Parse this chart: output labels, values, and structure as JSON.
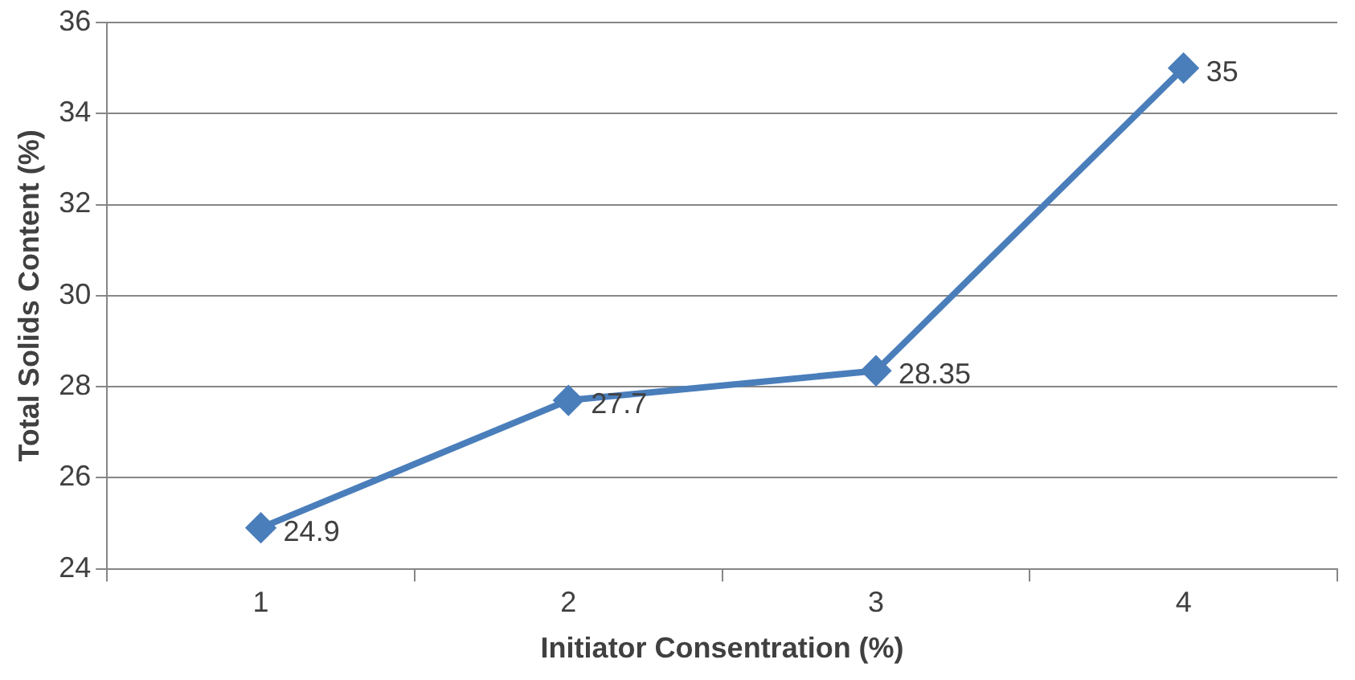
{
  "chart_data": {
    "type": "line",
    "xlabel": "Initiator Consentration (%)",
    "ylabel": "Total Solids Content (%)",
    "categories": [
      "1",
      "2",
      "3",
      "4"
    ],
    "series": [
      {
        "color": "#4a7ebb",
        "values": [
          24.9,
          27.7,
          28.35,
          35
        ]
      }
    ],
    "ylim": [
      24,
      36
    ],
    "yticks": [
      24,
      26,
      28,
      30,
      32,
      34,
      36
    ],
    "grid": "y",
    "legend": false,
    "marker": "diamond",
    "line_style": "solid",
    "data_labels": true
  }
}
